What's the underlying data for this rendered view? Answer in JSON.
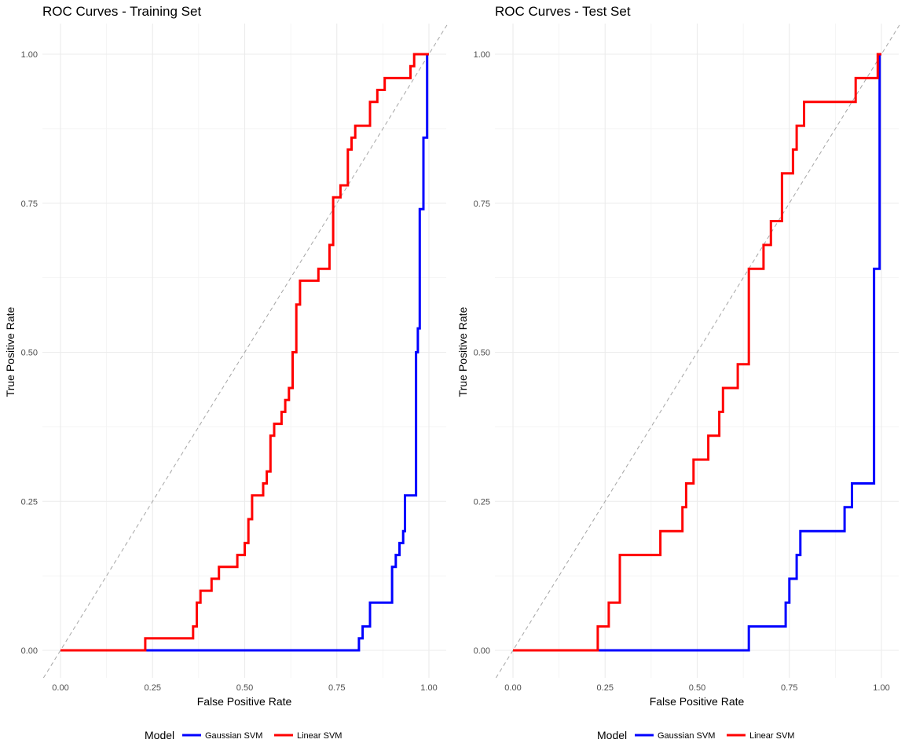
{
  "chart_data": [
    {
      "type": "line",
      "title": "ROC Curves - Training Set",
      "xlabel": "False Positive Rate",
      "ylabel": "True Positive Rate",
      "xlim": [
        0,
        1
      ],
      "ylim": [
        0,
        1
      ],
      "x_ticks": [
        "0.00",
        "0.25",
        "0.50",
        "0.75",
        "1.00"
      ],
      "y_ticks": [
        "0.00",
        "0.25",
        "0.50",
        "0.75",
        "1.00"
      ],
      "grid": true,
      "reference_line": "diagonal",
      "series": [
        {
          "name": "Gaussian SVM",
          "color": "#0000FF",
          "points": [
            [
              0,
              0
            ],
            [
              0.81,
              0
            ],
            [
              0.81,
              0.02
            ],
            [
              0.82,
              0.02
            ],
            [
              0.82,
              0.04
            ],
            [
              0.84,
              0.04
            ],
            [
              0.84,
              0.08
            ],
            [
              0.9,
              0.08
            ],
            [
              0.9,
              0.14
            ],
            [
              0.91,
              0.14
            ],
            [
              0.91,
              0.16
            ],
            [
              0.92,
              0.16
            ],
            [
              0.92,
              0.18
            ],
            [
              0.93,
              0.18
            ],
            [
              0.93,
              0.2
            ],
            [
              0.935,
              0.2
            ],
            [
              0.935,
              0.26
            ],
            [
              0.965,
              0.26
            ],
            [
              0.965,
              0.5
            ],
            [
              0.97,
              0.5
            ],
            [
              0.97,
              0.54
            ],
            [
              0.975,
              0.54
            ],
            [
              0.975,
              0.74
            ],
            [
              0.985,
              0.74
            ],
            [
              0.985,
              0.86
            ],
            [
              0.995,
              0.86
            ],
            [
              0.995,
              1.0
            ],
            [
              1.0,
              1.0
            ]
          ]
        },
        {
          "name": "Linear SVM",
          "color": "#FF0000",
          "points": [
            [
              0,
              0
            ],
            [
              0.23,
              0
            ],
            [
              0.23,
              0.02
            ],
            [
              0.36,
              0.02
            ],
            [
              0.36,
              0.04
            ],
            [
              0.37,
              0.04
            ],
            [
              0.37,
              0.08
            ],
            [
              0.38,
              0.08
            ],
            [
              0.38,
              0.1
            ],
            [
              0.41,
              0.1
            ],
            [
              0.41,
              0.12
            ],
            [
              0.43,
              0.12
            ],
            [
              0.43,
              0.14
            ],
            [
              0.48,
              0.14
            ],
            [
              0.48,
              0.16
            ],
            [
              0.5,
              0.16
            ],
            [
              0.5,
              0.18
            ],
            [
              0.51,
              0.18
            ],
            [
              0.51,
              0.22
            ],
            [
              0.52,
              0.22
            ],
            [
              0.52,
              0.26
            ],
            [
              0.55,
              0.26
            ],
            [
              0.55,
              0.28
            ],
            [
              0.56,
              0.28
            ],
            [
              0.56,
              0.3
            ],
            [
              0.57,
              0.3
            ],
            [
              0.57,
              0.36
            ],
            [
              0.58,
              0.36
            ],
            [
              0.58,
              0.38
            ],
            [
              0.6,
              0.38
            ],
            [
              0.6,
              0.4
            ],
            [
              0.61,
              0.4
            ],
            [
              0.61,
              0.42
            ],
            [
              0.62,
              0.42
            ],
            [
              0.62,
              0.44
            ],
            [
              0.63,
              0.44
            ],
            [
              0.63,
              0.5
            ],
            [
              0.64,
              0.5
            ],
            [
              0.64,
              0.58
            ],
            [
              0.65,
              0.58
            ],
            [
              0.65,
              0.62
            ],
            [
              0.7,
              0.62
            ],
            [
              0.7,
              0.64
            ],
            [
              0.73,
              0.64
            ],
            [
              0.73,
              0.68
            ],
            [
              0.74,
              0.68
            ],
            [
              0.74,
              0.76
            ],
            [
              0.76,
              0.76
            ],
            [
              0.76,
              0.78
            ],
            [
              0.78,
              0.78
            ],
            [
              0.78,
              0.84
            ],
            [
              0.79,
              0.84
            ],
            [
              0.79,
              0.86
            ],
            [
              0.8,
              0.86
            ],
            [
              0.8,
              0.88
            ],
            [
              0.84,
              0.88
            ],
            [
              0.84,
              0.92
            ],
            [
              0.86,
              0.92
            ],
            [
              0.86,
              0.94
            ],
            [
              0.88,
              0.94
            ],
            [
              0.88,
              0.96
            ],
            [
              0.95,
              0.96
            ],
            [
              0.95,
              0.98
            ],
            [
              0.96,
              0.98
            ],
            [
              0.96,
              1.0
            ],
            [
              1.0,
              1.0
            ]
          ]
        }
      ]
    },
    {
      "type": "line",
      "title": "ROC Curves - Test Set",
      "xlabel": "False Positive Rate",
      "ylabel": "True Positive Rate",
      "xlim": [
        0,
        1
      ],
      "ylim": [
        0,
        1
      ],
      "x_ticks": [
        "0.00",
        "0.25",
        "0.50",
        "0.75",
        "1.00"
      ],
      "y_ticks": [
        "0.00",
        "0.25",
        "0.50",
        "0.75",
        "1.00"
      ],
      "grid": true,
      "reference_line": "diagonal",
      "series": [
        {
          "name": "Gaussian SVM",
          "color": "#0000FF",
          "points": [
            [
              0,
              0
            ],
            [
              0.64,
              0
            ],
            [
              0.64,
              0.04
            ],
            [
              0.74,
              0.04
            ],
            [
              0.74,
              0.08
            ],
            [
              0.75,
              0.08
            ],
            [
              0.75,
              0.12
            ],
            [
              0.77,
              0.12
            ],
            [
              0.77,
              0.16
            ],
            [
              0.78,
              0.16
            ],
            [
              0.78,
              0.2
            ],
            [
              0.9,
              0.2
            ],
            [
              0.9,
              0.24
            ],
            [
              0.92,
              0.24
            ],
            [
              0.92,
              0.28
            ],
            [
              0.98,
              0.28
            ],
            [
              0.98,
              0.64
            ],
            [
              0.995,
              0.64
            ],
            [
              0.995,
              1.0
            ],
            [
              1.0,
              1.0
            ]
          ]
        },
        {
          "name": "Linear SVM",
          "color": "#FF0000",
          "points": [
            [
              0,
              0
            ],
            [
              0.23,
              0
            ],
            [
              0.23,
              0.04
            ],
            [
              0.26,
              0.04
            ],
            [
              0.26,
              0.08
            ],
            [
              0.29,
              0.08
            ],
            [
              0.29,
              0.16
            ],
            [
              0.4,
              0.16
            ],
            [
              0.4,
              0.2
            ],
            [
              0.46,
              0.2
            ],
            [
              0.46,
              0.24
            ],
            [
              0.47,
              0.24
            ],
            [
              0.47,
              0.28
            ],
            [
              0.49,
              0.28
            ],
            [
              0.49,
              0.32
            ],
            [
              0.53,
              0.32
            ],
            [
              0.53,
              0.36
            ],
            [
              0.56,
              0.36
            ],
            [
              0.56,
              0.4
            ],
            [
              0.57,
              0.4
            ],
            [
              0.57,
              0.44
            ],
            [
              0.61,
              0.44
            ],
            [
              0.61,
              0.48
            ],
            [
              0.64,
              0.48
            ],
            [
              0.64,
              0.64
            ],
            [
              0.68,
              0.64
            ],
            [
              0.68,
              0.68
            ],
            [
              0.7,
              0.68
            ],
            [
              0.7,
              0.72
            ],
            [
              0.73,
              0.72
            ],
            [
              0.73,
              0.8
            ],
            [
              0.76,
              0.8
            ],
            [
              0.76,
              0.84
            ],
            [
              0.77,
              0.84
            ],
            [
              0.77,
              0.88
            ],
            [
              0.79,
              0.88
            ],
            [
              0.79,
              0.92
            ],
            [
              0.93,
              0.92
            ],
            [
              0.93,
              0.96
            ],
            [
              0.99,
              0.96
            ],
            [
              0.99,
              1.0
            ],
            [
              1.0,
              1.0
            ]
          ]
        }
      ]
    }
  ],
  "legend": {
    "title": "Model",
    "items": [
      {
        "label": "Gaussian SVM",
        "color": "#0000FF"
      },
      {
        "label": "Linear SVM",
        "color": "#FF0000"
      }
    ]
  }
}
